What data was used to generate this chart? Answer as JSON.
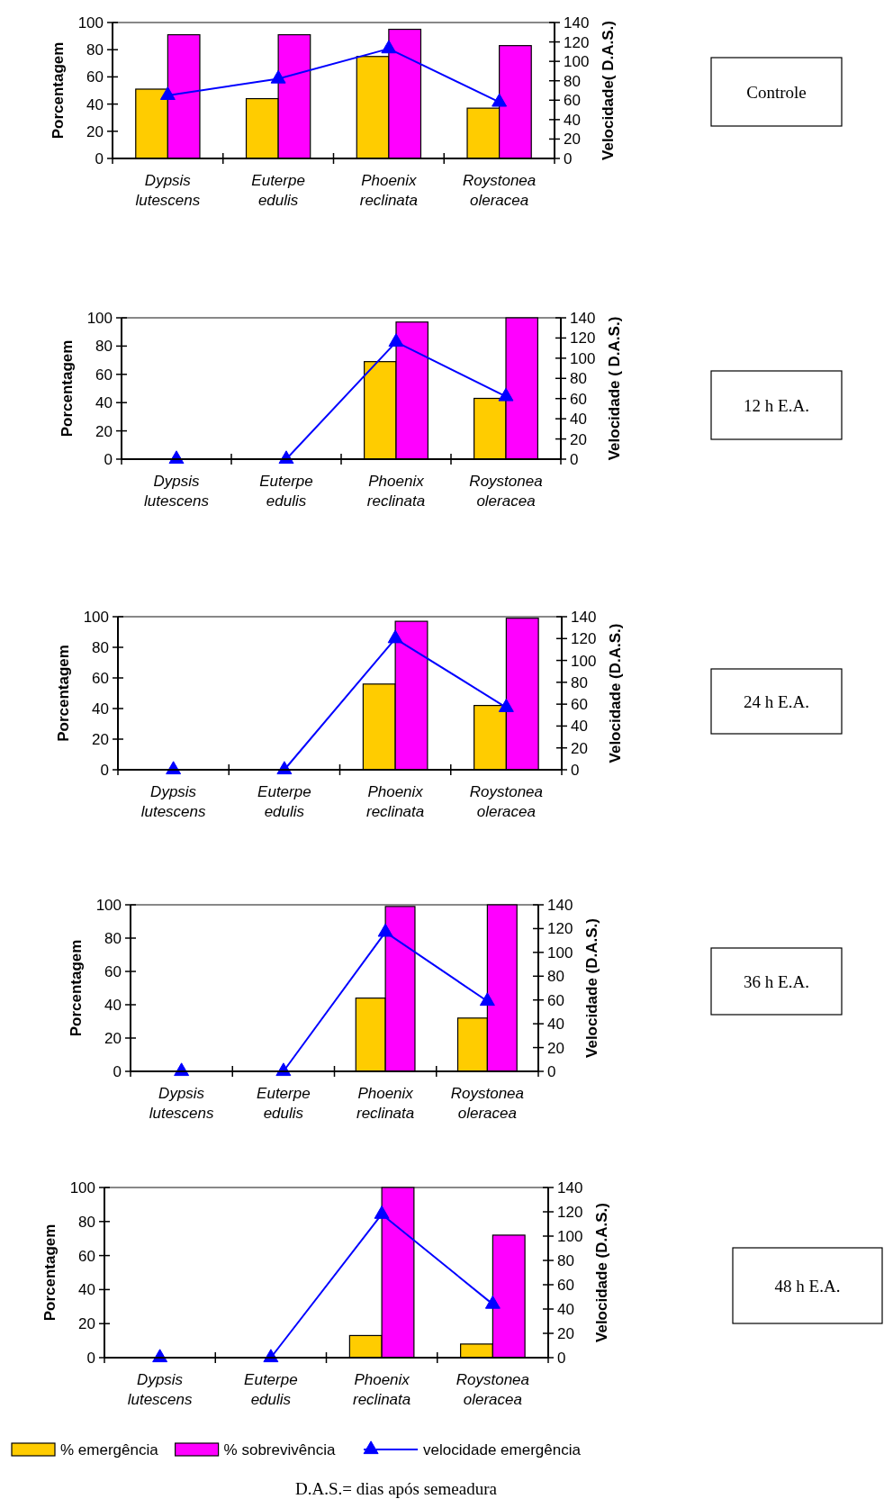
{
  "chart_data": [
    {
      "type": "bar",
      "categories": [
        "Dypsis lutescens",
        "Euterpe edulis",
        "Phoenix reclinata",
        "Roystonea oleracea"
      ],
      "ylabel": "Porcentagem",
      "y2label": "Velocidade( D.A.S.)",
      "ylim": [
        0,
        100
      ],
      "yticks": [
        0,
        20,
        40,
        60,
        80,
        100
      ],
      "y2lim": [
        0,
        140
      ],
      "y2ticks": [
        0,
        20,
        40,
        60,
        80,
        100,
        120,
        140
      ],
      "annotations": [
        "Controle"
      ],
      "series": [
        {
          "color": "#ffcc00",
          "values": [
            51,
            44,
            75,
            37
          ]
        },
        {
          "color": "#ff00ff",
          "values": [
            91,
            91,
            95,
            83
          ]
        },
        {
          "type": "line",
          "axis": "y2",
          "color": "#0000ff",
          "marker": "triangle",
          "values": [
            65,
            82,
            113,
            58
          ]
        }
      ]
    },
    {
      "type": "bar",
      "categories": [
        "Dypsis lutescens",
        "Euterpe edulis",
        "Phoenix reclinata",
        "Roystonea oleracea"
      ],
      "ylabel": "Porcentagem",
      "y2label": "Velocidade ( D.A.S.)",
      "ylim": [
        0,
        100
      ],
      "yticks": [
        0,
        20,
        40,
        60,
        80,
        100
      ],
      "y2lim": [
        0,
        140
      ],
      "y2ticks": [
        0,
        20,
        40,
        60,
        80,
        100,
        120,
        140
      ],
      "annotations": [
        "12 h E.A."
      ],
      "series": [
        {
          "color": "#ffcc00",
          "values": [
            0,
            0,
            69,
            43
          ]
        },
        {
          "color": "#ff00ff",
          "values": [
            0,
            0,
            97,
            100
          ]
        },
        {
          "type": "line",
          "axis": "y2",
          "color": "#0000ff",
          "marker": "triangle",
          "values": [
            0,
            0,
            116,
            62
          ]
        }
      ]
    },
    {
      "type": "bar",
      "categories": [
        "Dypsis lutescens",
        "Euterpe edulis",
        "Phoenix reclinata",
        "Roystonea oleracea"
      ],
      "ylabel": "Porcentagem",
      "y2label": "Velocidade (D.A.S.)",
      "ylim": [
        0,
        100
      ],
      "yticks": [
        0,
        20,
        40,
        60,
        80,
        100
      ],
      "y2lim": [
        0,
        140
      ],
      "y2ticks": [
        0,
        20,
        40,
        60,
        80,
        100,
        120,
        140
      ],
      "annotations": [
        "24 h E.A."
      ],
      "series": [
        {
          "color": "#ffcc00",
          "values": [
            0,
            0,
            56,
            42
          ]
        },
        {
          "color": "#ff00ff",
          "values": [
            0,
            0,
            97,
            99
          ]
        },
        {
          "type": "line",
          "axis": "y2",
          "color": "#0000ff",
          "marker": "triangle",
          "values": [
            0,
            0,
            120,
            57
          ]
        }
      ]
    },
    {
      "type": "bar",
      "categories": [
        "Dypsis lutescens",
        "Euterpe edulis",
        "Phoenix reclinata",
        "Roystonea oleracea"
      ],
      "ylabel": "Porcentagem",
      "y2label": "Velocidade (D.A.S.)",
      "ylim": [
        0,
        100
      ],
      "yticks": [
        0,
        20,
        40,
        60,
        80,
        100
      ],
      "y2lim": [
        0,
        140
      ],
      "y2ticks": [
        0,
        20,
        40,
        60,
        80,
        100,
        120,
        140
      ],
      "annotations": [
        "36 h E.A."
      ],
      "series": [
        {
          "color": "#ffcc00",
          "values": [
            0,
            0,
            44,
            32
          ]
        },
        {
          "color": "#ff00ff",
          "values": [
            0,
            0,
            99,
            100
          ]
        },
        {
          "type": "line",
          "axis": "y2",
          "color": "#0000ff",
          "marker": "triangle",
          "values": [
            0,
            0,
            117,
            59
          ]
        }
      ]
    },
    {
      "type": "bar",
      "categories": [
        "Dypsis lutescens",
        "Euterpe edulis",
        "Phoenix reclinata",
        "Roystonea oleracea"
      ],
      "ylabel": "Porcentagem",
      "y2label": "Velocidade (D.A.S.)",
      "ylim": [
        0,
        100
      ],
      "yticks": [
        0,
        20,
        40,
        60,
        80,
        100
      ],
      "y2lim": [
        0,
        140
      ],
      "y2ticks": [
        0,
        20,
        40,
        60,
        80,
        100,
        120,
        140
      ],
      "legend": "bottom",
      "annotations": [
        "48 h E.A.",
        "D.A.S.= dias após semeadura"
      ],
      "series": [
        {
          "name": "% emergência",
          "color": "#ffcc00",
          "values": [
            0,
            0,
            13,
            8
          ]
        },
        {
          "name": "% sobrevivência",
          "color": "#ff00ff",
          "values": [
            0,
            0,
            100,
            72
          ]
        },
        {
          "name": "velocidade emergência",
          "type": "line",
          "axis": "y2",
          "color": "#0000ff",
          "marker": "triangle",
          "values": [
            0,
            0,
            118,
            44
          ]
        }
      ]
    }
  ]
}
